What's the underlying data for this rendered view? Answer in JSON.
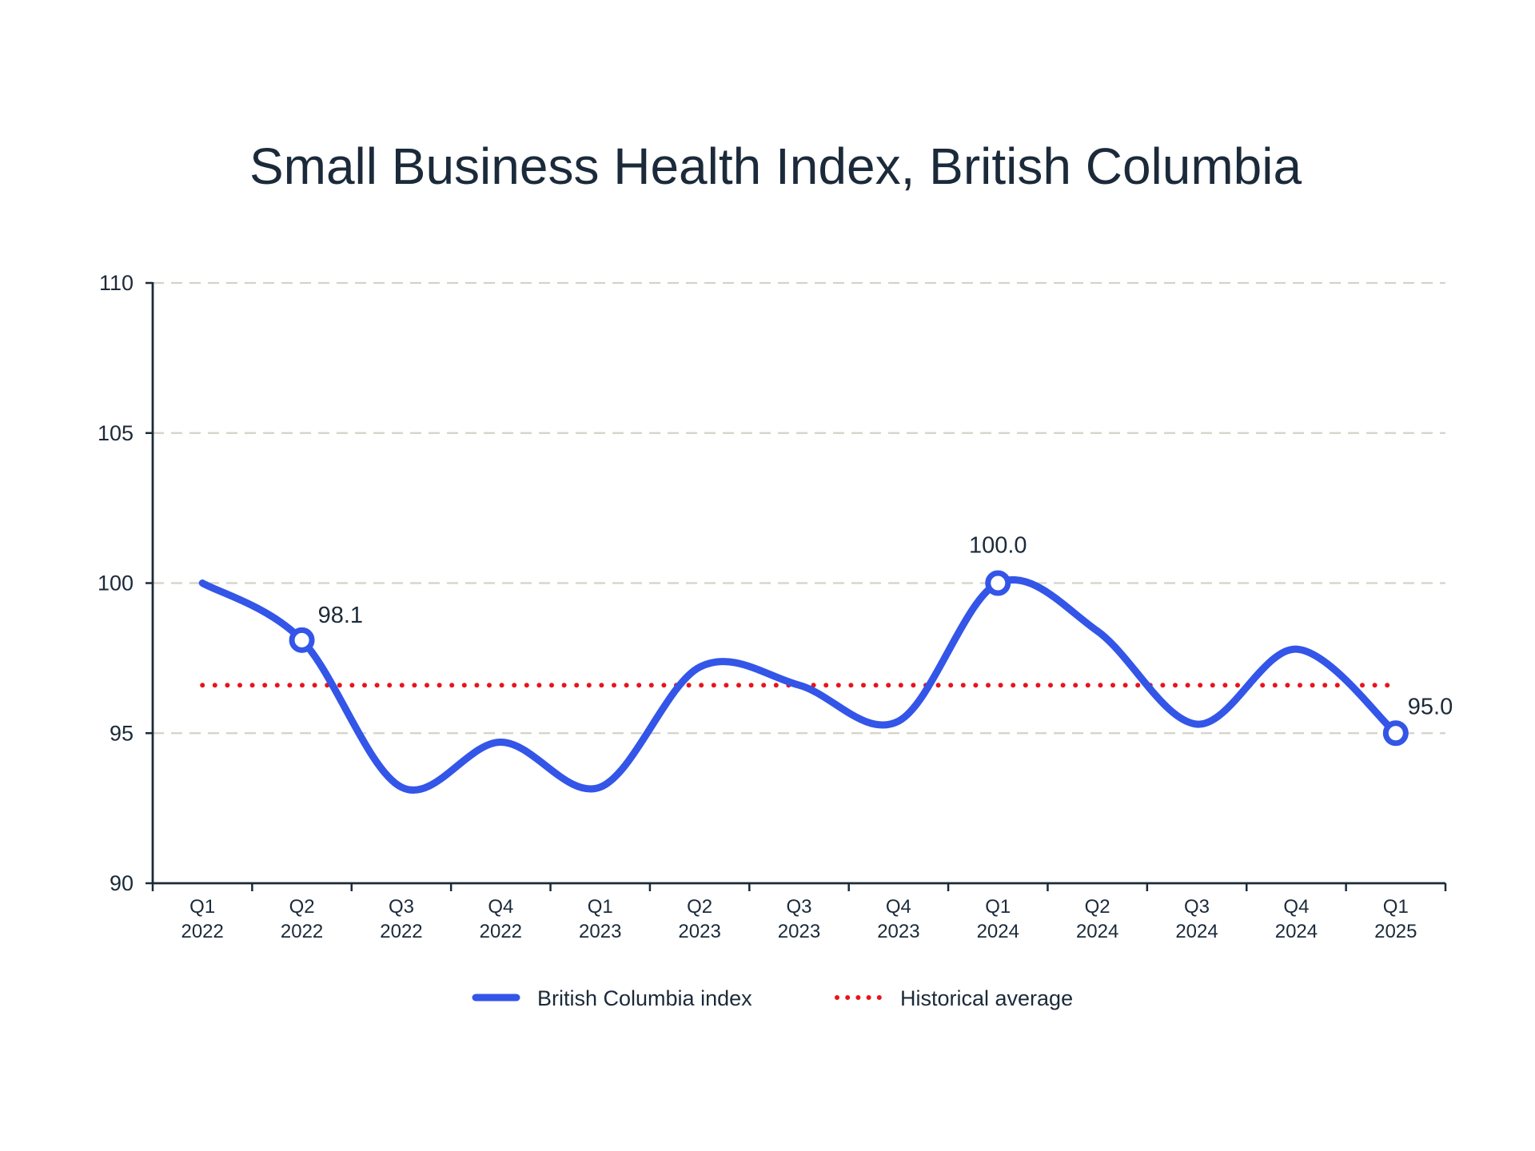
{
  "chart_data": {
    "type": "line",
    "title": "Small Business Health Index, British Columbia",
    "xlabel": "",
    "ylabel": "",
    "ylim": [
      90,
      110
    ],
    "yticks": [
      90,
      95,
      100,
      105,
      110
    ],
    "grid": true,
    "legend_position": "bottom-center",
    "categories": [
      [
        "Q1",
        "2022"
      ],
      [
        "Q2",
        "2022"
      ],
      [
        "Q3",
        "2022"
      ],
      [
        "Q4",
        "2022"
      ],
      [
        "Q1",
        "2023"
      ],
      [
        "Q2",
        "2023"
      ],
      [
        "Q3",
        "2023"
      ],
      [
        "Q4",
        "2023"
      ],
      [
        "Q1",
        "2024"
      ],
      [
        "Q2",
        "2024"
      ],
      [
        "Q3",
        "2024"
      ],
      [
        "Q4",
        "2024"
      ],
      [
        "Q1",
        "2025"
      ]
    ],
    "series": [
      {
        "name": "British Columbia index",
        "color": "#3355e8",
        "style": "solid-smooth",
        "values": [
          100.0,
          98.1,
          93.2,
          94.7,
          93.2,
          97.2,
          96.6,
          95.4,
          100.0,
          98.4,
          95.3,
          97.8,
          95.0
        ],
        "highlighted": [
          {
            "index": 1,
            "label": "98.1"
          },
          {
            "index": 8,
            "label": "100.0"
          },
          {
            "index": 12,
            "label": "95.0"
          }
        ]
      },
      {
        "name": "Historical average",
        "color": "#e8141c",
        "style": "dotted",
        "values": [
          96.6,
          96.6,
          96.6,
          96.6,
          96.6,
          96.6,
          96.6,
          96.6,
          96.6,
          96.6,
          96.6,
          96.6,
          96.6
        ]
      }
    ]
  }
}
